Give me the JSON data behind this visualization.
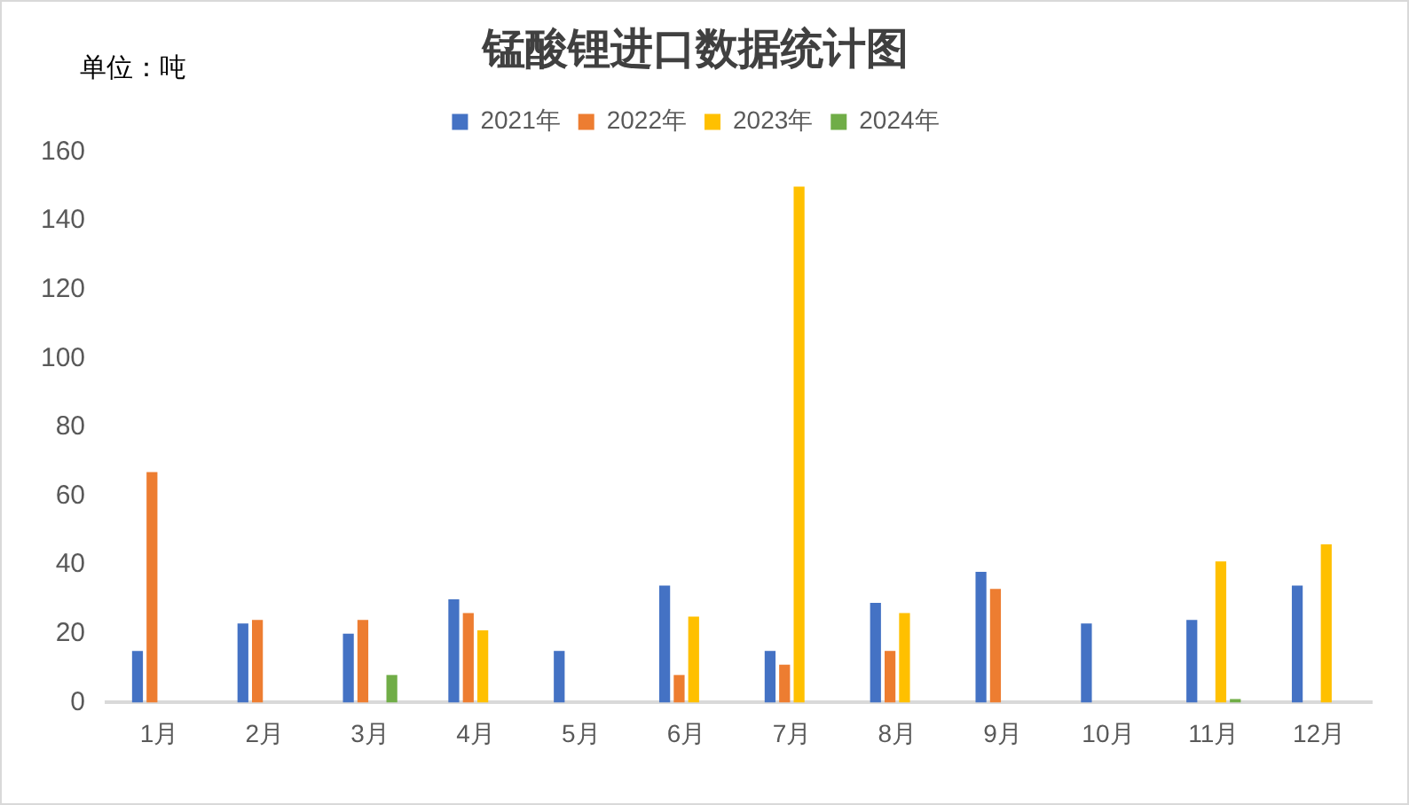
{
  "chart_data": {
    "type": "bar",
    "title": "锰酸锂进口数据统计图",
    "annotations": [
      "单位：吨"
    ],
    "categories": [
      "1月",
      "2月",
      "3月",
      "4月",
      "5月",
      "6月",
      "7月",
      "8月",
      "9月",
      "10月",
      "11月",
      "12月"
    ],
    "series": [
      {
        "name": "2021年",
        "color": "#4472c4",
        "values": [
          15,
          23,
          20,
          30,
          15,
          34,
          15,
          29,
          38,
          23,
          24,
          34
        ]
      },
      {
        "name": "2022年",
        "color": "#ed7d31",
        "values": [
          67,
          24,
          24,
          26,
          null,
          8,
          11,
          15,
          33,
          null,
          null,
          null
        ]
      },
      {
        "name": "2023年",
        "color": "#ffc000",
        "values": [
          null,
          null,
          null,
          21,
          null,
          25,
          150,
          26,
          null,
          null,
          41,
          46
        ]
      },
      {
        "name": "2024年",
        "color": "#70ad47",
        "values": [
          null,
          null,
          8,
          null,
          null,
          null,
          null,
          null,
          null,
          null,
          1,
          null
        ]
      }
    ],
    "ylim": [
      0,
      160
    ],
    "yticks": [
      0,
      20,
      40,
      60,
      80,
      100,
      120,
      140,
      160
    ],
    "grid": false,
    "legend": "top"
  }
}
